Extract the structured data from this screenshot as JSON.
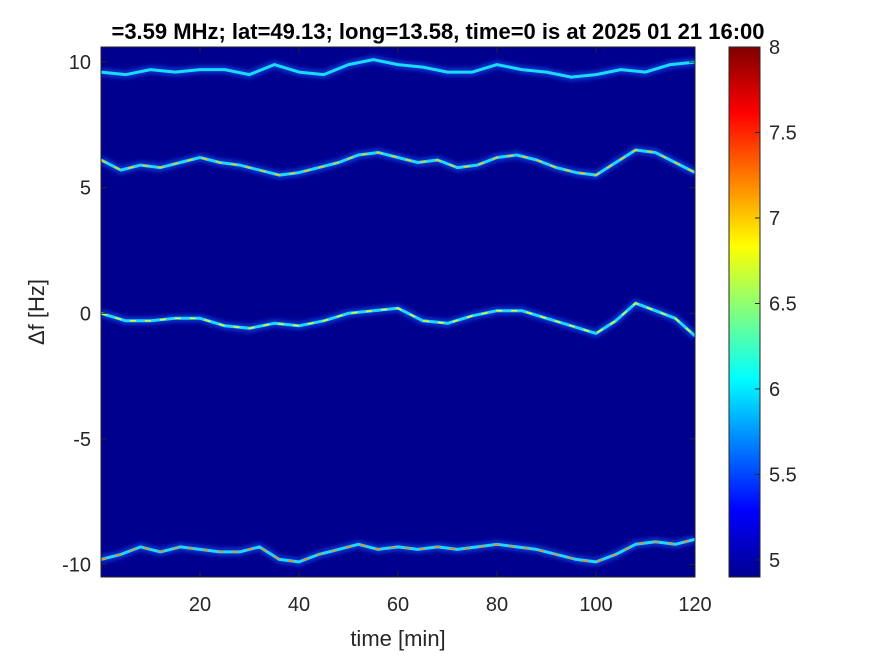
{
  "chart_data": {
    "type": "heatmap",
    "title": "=3.59 MHz;  lat=49.13; long=13.58, time=0 is at 2025 01 21 16:00",
    "xlabel": "time [min]",
    "ylabel": "Δf [Hz]",
    "xlim": [
      0,
      120
    ],
    "ylim": [
      -10.5,
      10.6
    ],
    "x_ticks": [
      20,
      40,
      60,
      80,
      100,
      120
    ],
    "x_tick_labels": [
      "20",
      "40",
      "60",
      "80",
      "100",
      "120"
    ],
    "y_ticks": [
      -10,
      -5,
      0,
      5,
      10
    ],
    "y_tick_labels": [
      "-10",
      "-5",
      "0",
      "5",
      "10"
    ],
    "colorbar": {
      "range": [
        4.9,
        8
      ],
      "colormap": "jet",
      "ticks": [
        5,
        5.5,
        6,
        6.5,
        7,
        7.5,
        8
      ],
      "tick_labels": [
        "5",
        "5.5",
        "6",
        "6.5",
        "7",
        "7.5",
        "8"
      ]
    },
    "background_color": "#00008f",
    "grid": false,
    "traces": [
      {
        "name": "",
        "intensity": 6.0,
        "points": [
          [
            0,
            9.6
          ],
          [
            5,
            9.5
          ],
          [
            10,
            9.7
          ],
          [
            15,
            9.6
          ],
          [
            20,
            9.7
          ],
          [
            25,
            9.7
          ],
          [
            30,
            9.5
          ],
          [
            35,
            9.9
          ],
          [
            40,
            9.6
          ],
          [
            45,
            9.5
          ],
          [
            50,
            9.9
          ],
          [
            55,
            10.1
          ],
          [
            60,
            9.9
          ],
          [
            65,
            9.8
          ],
          [
            70,
            9.6
          ],
          [
            75,
            9.6
          ],
          [
            80,
            9.9
          ],
          [
            85,
            9.7
          ],
          [
            90,
            9.6
          ],
          [
            95,
            9.4
          ],
          [
            100,
            9.5
          ],
          [
            105,
            9.7
          ],
          [
            110,
            9.6
          ],
          [
            115,
            9.9
          ],
          [
            120,
            10.0
          ]
        ]
      },
      {
        "name": "",
        "intensity": 7.0,
        "points": [
          [
            0,
            6.1
          ],
          [
            4,
            5.7
          ],
          [
            8,
            5.9
          ],
          [
            12,
            5.8
          ],
          [
            16,
            6.0
          ],
          [
            20,
            6.2
          ],
          [
            24,
            6.0
          ],
          [
            28,
            5.9
          ],
          [
            32,
            5.7
          ],
          [
            36,
            5.5
          ],
          [
            40,
            5.6
          ],
          [
            44,
            5.8
          ],
          [
            48,
            6.0
          ],
          [
            52,
            6.3
          ],
          [
            56,
            6.4
          ],
          [
            60,
            6.2
          ],
          [
            64,
            6.0
          ],
          [
            68,
            6.1
          ],
          [
            72,
            5.8
          ],
          [
            76,
            5.9
          ],
          [
            80,
            6.2
          ],
          [
            84,
            6.3
          ],
          [
            88,
            6.1
          ],
          [
            92,
            5.8
          ],
          [
            96,
            5.6
          ],
          [
            100,
            5.5
          ],
          [
            104,
            6.0
          ],
          [
            108,
            6.5
          ],
          [
            112,
            6.4
          ],
          [
            116,
            6.0
          ],
          [
            120,
            5.6
          ]
        ]
      },
      {
        "name": "",
        "intensity": 6.8,
        "points": [
          [
            0,
            0.0
          ],
          [
            5,
            -0.3
          ],
          [
            10,
            -0.3
          ],
          [
            15,
            -0.2
          ],
          [
            20,
            -0.2
          ],
          [
            25,
            -0.5
          ],
          [
            30,
            -0.6
          ],
          [
            35,
            -0.4
          ],
          [
            40,
            -0.5
          ],
          [
            45,
            -0.3
          ],
          [
            50,
            0.0
          ],
          [
            55,
            0.1
          ],
          [
            60,
            0.2
          ],
          [
            65,
            -0.3
          ],
          [
            70,
            -0.4
          ],
          [
            75,
            -0.1
          ],
          [
            80,
            0.1
          ],
          [
            85,
            0.1
          ],
          [
            90,
            -0.2
          ],
          [
            95,
            -0.5
          ],
          [
            100,
            -0.8
          ],
          [
            104,
            -0.3
          ],
          [
            108,
            0.4
          ],
          [
            112,
            0.1
          ],
          [
            116,
            -0.2
          ],
          [
            120,
            -0.9
          ]
        ]
      },
      {
        "name": "",
        "intensity": 7.2,
        "points": [
          [
            0,
            -9.8
          ],
          [
            4,
            -9.6
          ],
          [
            8,
            -9.3
          ],
          [
            12,
            -9.5
          ],
          [
            16,
            -9.3
          ],
          [
            20,
            -9.4
          ],
          [
            24,
            -9.5
          ],
          [
            28,
            -9.5
          ],
          [
            32,
            -9.3
          ],
          [
            36,
            -9.8
          ],
          [
            40,
            -9.9
          ],
          [
            44,
            -9.6
          ],
          [
            48,
            -9.4
          ],
          [
            52,
            -9.2
          ],
          [
            56,
            -9.4
          ],
          [
            60,
            -9.3
          ],
          [
            64,
            -9.4
          ],
          [
            68,
            -9.3
          ],
          [
            72,
            -9.4
          ],
          [
            76,
            -9.3
          ],
          [
            80,
            -9.2
          ],
          [
            84,
            -9.3
          ],
          [
            88,
            -9.4
          ],
          [
            92,
            -9.6
          ],
          [
            96,
            -9.8
          ],
          [
            100,
            -9.9
          ],
          [
            104,
            -9.6
          ],
          [
            108,
            -9.2
          ],
          [
            112,
            -9.1
          ],
          [
            116,
            -9.2
          ],
          [
            120,
            -9.0
          ]
        ]
      }
    ]
  }
}
